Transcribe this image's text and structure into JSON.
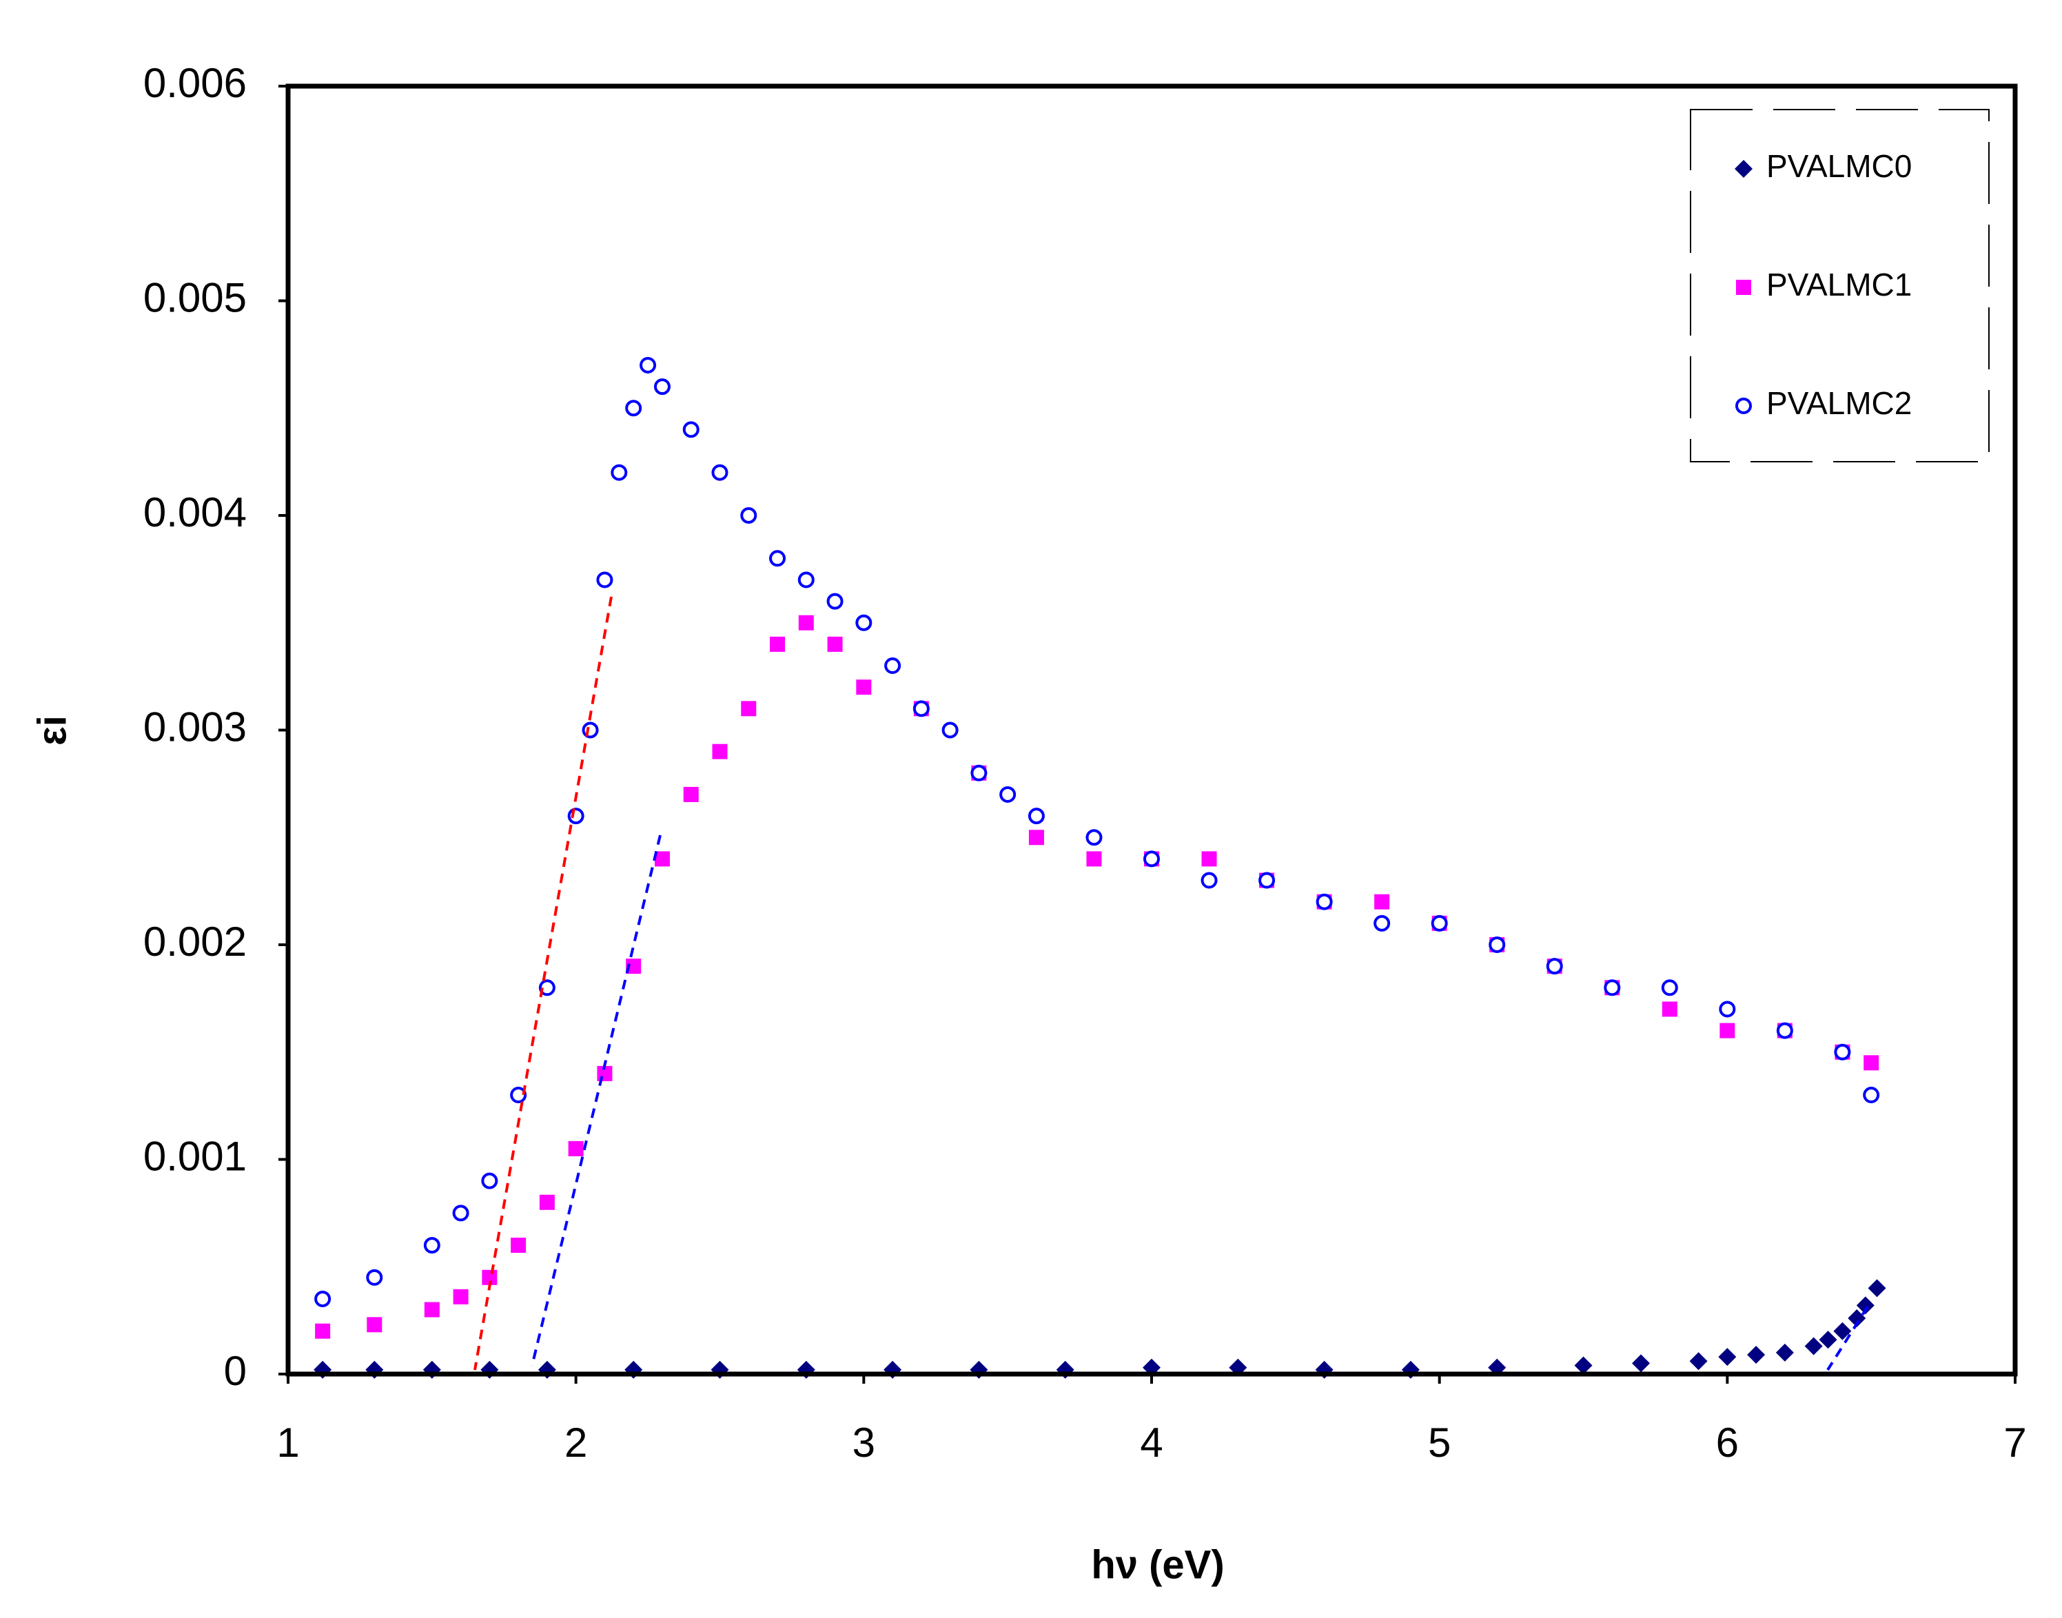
{
  "chart_data": {
    "type": "scatter",
    "xlabel": "hν (eV)",
    "ylabel": "εi",
    "xlim": [
      1,
      7
    ],
    "xticks": [
      1,
      2,
      3,
      4,
      5,
      6,
      7
    ],
    "ylim": [
      0,
      0.006
    ],
    "yticks": [
      0,
      0.001,
      0.002,
      0.003,
      0.004,
      0.005,
      0.006
    ],
    "legend": "upper right",
    "series": [
      {
        "name": "PVALMC0",
        "color": "#000080",
        "marker": "diamond",
        "x": [
          1.12,
          1.3,
          1.5,
          1.7,
          1.9,
          2.2,
          2.5,
          2.8,
          3.1,
          3.4,
          3.7,
          4.0,
          4.3,
          4.6,
          4.9,
          5.2,
          5.5,
          5.7,
          5.9,
          6.0,
          6.1,
          6.2,
          6.3,
          6.35,
          6.4,
          6.45,
          6.48,
          6.52
        ],
        "values": [
          2e-05,
          2e-05,
          2e-05,
          2e-05,
          2e-05,
          2e-05,
          2e-05,
          2e-05,
          2e-05,
          2e-05,
          2e-05,
          3e-05,
          3e-05,
          2e-05,
          2e-05,
          3e-05,
          4e-05,
          5e-05,
          6e-05,
          8e-05,
          9e-05,
          0.0001,
          0.00013,
          0.00016,
          0.0002,
          0.00026,
          0.00032,
          0.0004
        ]
      },
      {
        "name": "PVALMC1",
        "color": "#ff00ff",
        "marker": "square",
        "x": [
          1.12,
          1.3,
          1.5,
          1.6,
          1.7,
          1.8,
          1.9,
          2.0,
          2.1,
          2.2,
          2.3,
          2.4,
          2.5,
          2.6,
          2.7,
          2.8,
          2.9,
          3.0,
          3.2,
          3.4,
          3.6,
          3.8,
          4.0,
          4.2,
          4.4,
          4.6,
          4.8,
          5.0,
          5.2,
          5.4,
          5.6,
          5.8,
          6.0,
          6.2,
          6.4,
          6.5
        ],
        "values": [
          0.0002,
          0.00023,
          0.0003,
          0.00036,
          0.00045,
          0.0006,
          0.0008,
          0.00105,
          0.0014,
          0.0019,
          0.0024,
          0.0027,
          0.0029,
          0.0031,
          0.0034,
          0.0035,
          0.0034,
          0.0032,
          0.0031,
          0.0028,
          0.0025,
          0.0024,
          0.0024,
          0.0024,
          0.0023,
          0.0022,
          0.0022,
          0.0021,
          0.002,
          0.0019,
          0.0018,
          0.0017,
          0.0016,
          0.0016,
          0.0015,
          0.00145
        ]
      },
      {
        "name": "PVALMC2",
        "color": "#0000ff",
        "marker": "circle",
        "x": [
          1.12,
          1.3,
          1.5,
          1.6,
          1.7,
          1.8,
          1.9,
          2.0,
          2.05,
          2.1,
          2.15,
          2.2,
          2.25,
          2.3,
          2.4,
          2.5,
          2.6,
          2.7,
          2.8,
          2.9,
          3.0,
          3.1,
          3.2,
          3.3,
          3.4,
          3.5,
          3.6,
          3.8,
          4.0,
          4.2,
          4.4,
          4.6,
          4.8,
          5.0,
          5.2,
          5.4,
          5.6,
          5.8,
          6.0,
          6.2,
          6.4,
          6.5
        ],
        "values": [
          0.00035,
          0.00045,
          0.0006,
          0.00075,
          0.0009,
          0.0013,
          0.0018,
          0.0026,
          0.003,
          0.0037,
          0.0042,
          0.0045,
          0.0047,
          0.0046,
          0.0044,
          0.0042,
          0.004,
          0.0038,
          0.0037,
          0.0036,
          0.0035,
          0.0033,
          0.0031,
          0.003,
          0.0028,
          0.0027,
          0.0026,
          0.0025,
          0.0024,
          0.0023,
          0.0023,
          0.0022,
          0.0021,
          0.0021,
          0.002,
          0.0019,
          0.0018,
          0.0018,
          0.0017,
          0.0016,
          0.0015,
          0.0013
        ]
      }
    ]
  }
}
